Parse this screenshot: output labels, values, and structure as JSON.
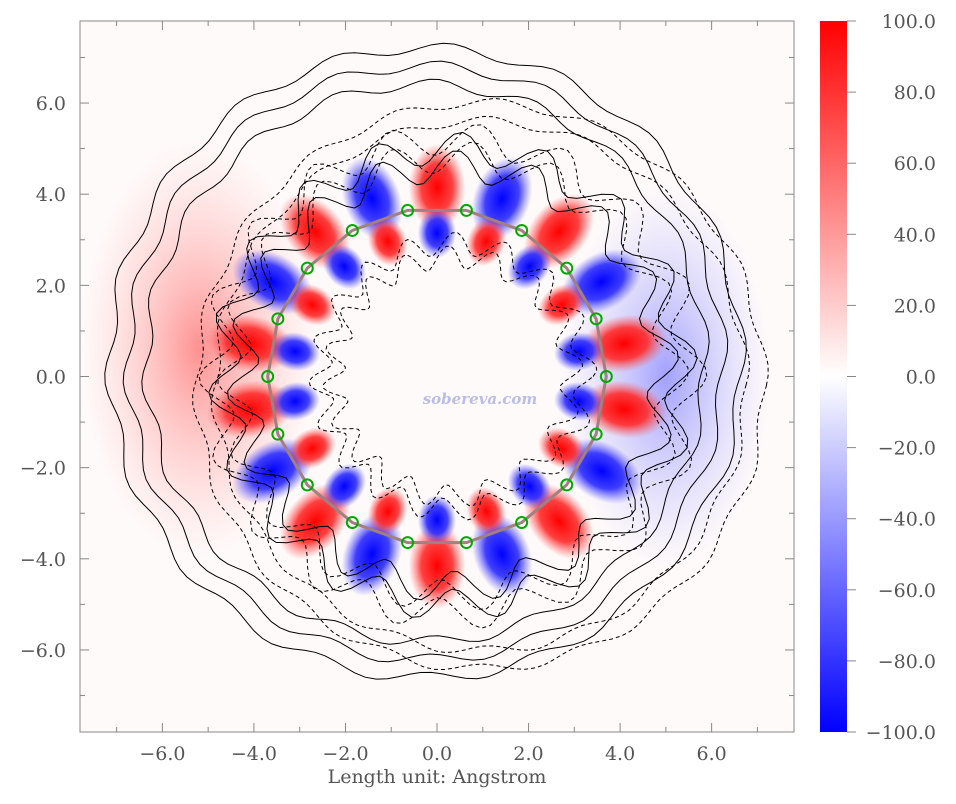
{
  "chart_data": {
    "type": "heatmap",
    "title": "",
    "xlabel": "Length unit: Angstrom",
    "ylabel": "",
    "xlim": [
      -7.8,
      7.8
    ],
    "ylim": [
      -7.8,
      7.8
    ],
    "x_ticks": [
      -6,
      -4,
      -2,
      0,
      2,
      4,
      6
    ],
    "y_ticks": [
      -6,
      -4,
      -2,
      0,
      2,
      4,
      6
    ],
    "x_tick_labels": [
      "−6.0",
      "−4.0",
      "−2.0",
      "0.0",
      "2.0",
      "4.0",
      "6.0"
    ],
    "y_tick_labels": [
      "6.0",
      "4.0",
      "2.0",
      "0.0",
      "−2.0",
      "−4.0",
      "−6.0"
    ],
    "colorbar": {
      "min": -100,
      "max": 100,
      "ticks": [
        100,
        80,
        60,
        40,
        20,
        0,
        -20,
        -40,
        -60,
        -80,
        -100
      ],
      "tick_labels": [
        "100.0",
        "80.0",
        "60.0",
        "40.0",
        "20.0",
        "0.0",
        "−20.0",
        "−40.0",
        "−60.0",
        "−80.0",
        "−100.0"
      ],
      "colors": {
        "high": "#ff0000",
        "mid": "#ffffff",
        "low": "#0000ff"
      }
    },
    "grid": false,
    "watermark": "sobereva.com",
    "ring_atoms": 18,
    "ring_radius": 3.7,
    "ring_color": "#a08080",
    "atom_marker_color": "#00aa00"
  }
}
